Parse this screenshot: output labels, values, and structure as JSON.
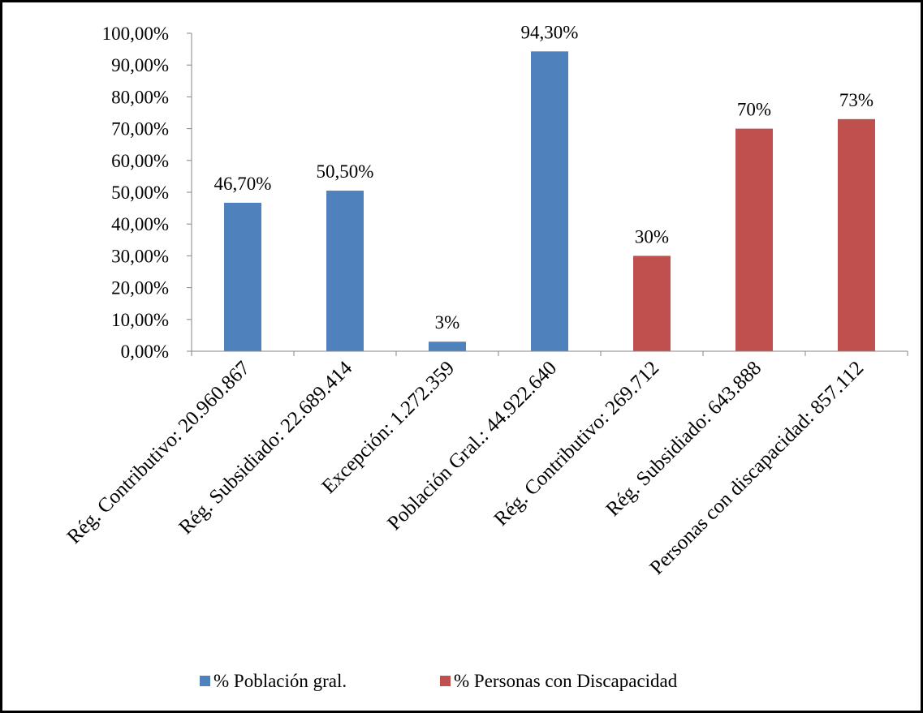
{
  "chart_data": {
    "type": "bar",
    "title": "",
    "xlabel": "",
    "ylabel": "",
    "ylim": [
      0,
      100
    ],
    "yticks": [
      "0,00%",
      "10,00%",
      "20,00%",
      "30,00%",
      "40,00%",
      "50,00%",
      "60,00%",
      "70,00%",
      "80,00%",
      "90,00%",
      "100,00%"
    ],
    "categories": [
      "Rég. Contributivo: 20.960.867",
      "Rég. Subsidiado: 22.689.414",
      "Excepción: 1.272.359",
      "Población Gral.: 44.922.640",
      "Rég. Contributivo: 269.712",
      "Rég. Subsidiado: 643.888",
      "Personas con discapacidad: 857.112"
    ],
    "series": [
      {
        "name": "% Población gral.",
        "color": "#4F81BD",
        "values": [
          46.7,
          50.5,
          3,
          94.3,
          null,
          null,
          null
        ],
        "labels": [
          "46,70%",
          "50,50%",
          "3%",
          "94,30%",
          null,
          null,
          null
        ]
      },
      {
        "name": "% Personas con Discapacidad",
        "color": "#C0504D",
        "values": [
          null,
          null,
          null,
          null,
          30,
          70,
          73
        ],
        "labels": [
          null,
          null,
          null,
          null,
          "30%",
          "70%",
          "73%"
        ]
      }
    ],
    "grid": false,
    "legend_position": "bottom"
  }
}
